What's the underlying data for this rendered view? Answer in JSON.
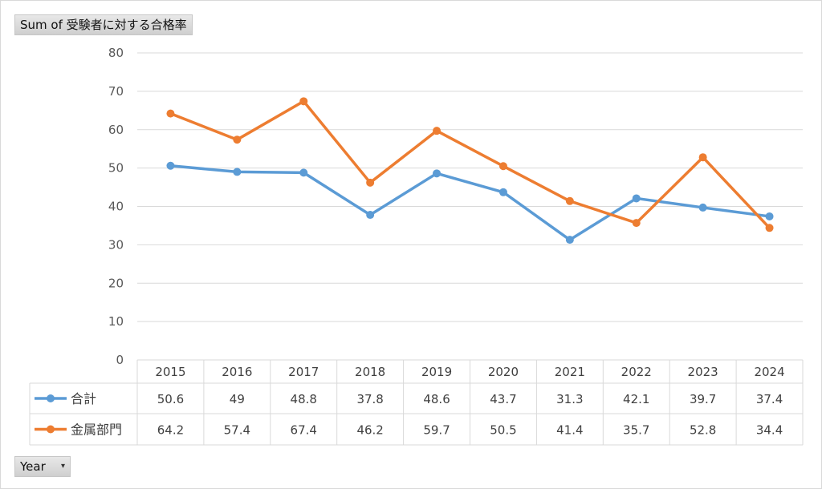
{
  "title_button": "Sum of 受験者に対する合格率",
  "axis_field_button": "Year",
  "chart_data": {
    "type": "line",
    "title": "Sum of 受験者に対する合格率",
    "categories": [
      "2015",
      "2016",
      "2017",
      "2018",
      "2019",
      "2020",
      "2021",
      "2022",
      "2023",
      "2024"
    ],
    "series": [
      {
        "name": "合計",
        "color": "#5b9bd5",
        "values": [
          50.6,
          49,
          48.8,
          37.8,
          48.6,
          43.7,
          31.3,
          42.1,
          39.7,
          37.4
        ]
      },
      {
        "name": "金属部門",
        "color": "#ed7d31",
        "values": [
          64.2,
          57.4,
          67.4,
          46.2,
          59.7,
          50.5,
          41.4,
          35.7,
          52.8,
          34.4
        ]
      }
    ],
    "ylim": [
      0,
      80
    ],
    "yticks": [
      0,
      10,
      20,
      30,
      40,
      50,
      60,
      70,
      80
    ],
    "grid": true,
    "data_table": true,
    "legend": "data-table-left"
  }
}
